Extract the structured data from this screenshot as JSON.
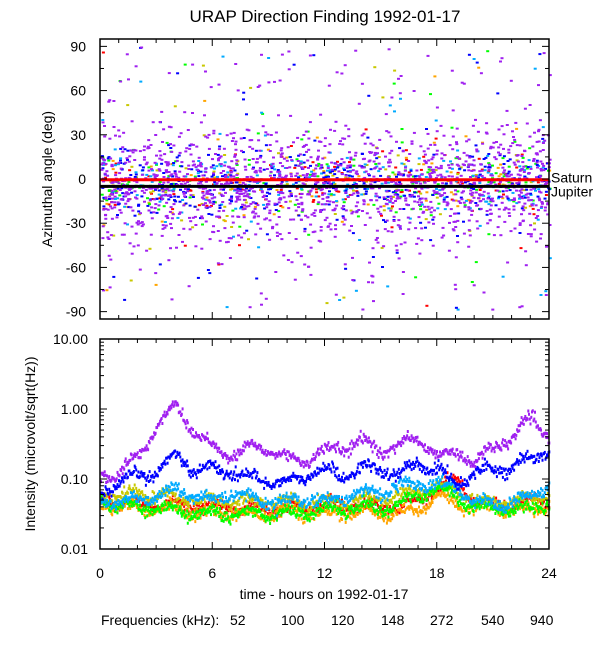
{
  "title": "URAP Direction Finding  1992-01-17",
  "colors": {
    "52": "#ff0000",
    "100": "#ffa500",
    "120": "#c8c800",
    "148": "#00ff00",
    "272": "#00aaff",
    "540": "#0000ff",
    "940": "#a020f0"
  },
  "legend": {
    "label": "Frequencies (kHz):",
    "items": [
      {
        "name": "52",
        "color": "#ff0000"
      },
      {
        "name": "100",
        "color": "#ffa500"
      },
      {
        "name": "120",
        "color": "#c8c800"
      },
      {
        "name": "148",
        "color": "#00ff00"
      },
      {
        "name": "272",
        "color": "#00aaff"
      },
      {
        "name": "540",
        "color": "#0000ff"
      },
      {
        "name": "940",
        "color": "#a020f0"
      }
    ]
  },
  "chart_data": [
    {
      "type": "scatter",
      "ylabel": "Azimuthal angle (deg)",
      "xlabel": "",
      "xlim": [
        0,
        24
      ],
      "ylim": [
        -95,
        95
      ],
      "yticks": [
        "90",
        "60",
        "30",
        "0",
        "-30",
        "-60",
        "-90"
      ],
      "reference_lines": [
        {
          "name": "Saturn",
          "value": -0.5,
          "color": "#ff0000"
        },
        {
          "name": "Jupiter",
          "value": -5,
          "color": "#000000"
        }
      ],
      "series_order": [
        "52",
        "100",
        "120",
        "148",
        "272",
        "540",
        "940"
      ]
    },
    {
      "type": "line",
      "ylabel": "Intensity (microvolt/sqrt(Hz))",
      "xlabel": "time - hours on 1992-01-17",
      "xlim": [
        0,
        24
      ],
      "ylim": [
        0.01,
        10
      ],
      "yscale": "log",
      "yticks": [
        "10.00",
        "1.00",
        "0.10",
        "0.01"
      ],
      "xticks": [
        "0",
        "6",
        "12",
        "18",
        "24"
      ],
      "x": [
        0,
        1,
        2,
        3,
        4,
        5,
        6,
        7,
        8,
        9,
        10,
        11,
        12,
        13,
        14,
        15,
        16,
        17,
        18,
        19,
        20,
        21,
        22,
        23,
        24
      ],
      "series": [
        {
          "name": "52",
          "values": [
            0.05,
            0.05,
            0.045,
            0.045,
            0.045,
            0.045,
            0.04,
            0.04,
            0.04,
            0.04,
            0.04,
            0.04,
            0.045,
            0.045,
            0.045,
            0.04,
            0.045,
            0.05,
            0.08,
            0.1,
            0.05,
            0.045,
            0.045,
            0.05,
            0.05
          ]
        },
        {
          "name": "100",
          "values": [
            0.045,
            0.045,
            0.04,
            0.04,
            0.04,
            0.035,
            0.035,
            0.035,
            0.032,
            0.035,
            0.035,
            0.035,
            0.032,
            0.035,
            0.035,
            0.033,
            0.034,
            0.04,
            0.06,
            0.045,
            0.04,
            0.04,
            0.038,
            0.04,
            0.045
          ]
        },
        {
          "name": "120",
          "values": [
            0.06,
            0.06,
            0.065,
            0.06,
            0.055,
            0.05,
            0.05,
            0.05,
            0.05,
            0.05,
            0.05,
            0.045,
            0.05,
            0.05,
            0.055,
            0.055,
            0.06,
            0.07,
            0.08,
            0.07,
            0.05,
            0.05,
            0.05,
            0.055,
            0.065
          ]
        },
        {
          "name": "148",
          "values": [
            0.05,
            0.045,
            0.04,
            0.04,
            0.038,
            0.034,
            0.033,
            0.033,
            0.034,
            0.035,
            0.033,
            0.035,
            0.038,
            0.04,
            0.042,
            0.04,
            0.045,
            0.06,
            0.075,
            0.06,
            0.04,
            0.04,
            0.038,
            0.04,
            0.05
          ]
        },
        {
          "name": "272",
          "values": [
            0.05,
            0.05,
            0.055,
            0.06,
            0.075,
            0.06,
            0.05,
            0.065,
            0.055,
            0.05,
            0.05,
            0.055,
            0.05,
            0.06,
            0.065,
            0.07,
            0.08,
            0.09,
            0.09,
            0.08,
            0.05,
            0.045,
            0.05,
            0.06,
            0.09
          ]
        },
        {
          "name": "540",
          "values": [
            0.065,
            0.09,
            0.12,
            0.13,
            0.24,
            0.14,
            0.15,
            0.13,
            0.11,
            0.1,
            0.09,
            0.12,
            0.14,
            0.12,
            0.15,
            0.14,
            0.12,
            0.18,
            0.14,
            0.09,
            0.13,
            0.15,
            0.15,
            0.2,
            0.3
          ]
        },
        {
          "name": "940",
          "values": [
            0.11,
            0.13,
            0.22,
            0.6,
            1.2,
            0.5,
            0.3,
            0.22,
            0.3,
            0.28,
            0.2,
            0.2,
            0.26,
            0.3,
            0.36,
            0.26,
            0.33,
            0.4,
            0.22,
            0.26,
            0.18,
            0.3,
            0.4,
            0.8,
            0.4
          ]
        }
      ]
    }
  ]
}
